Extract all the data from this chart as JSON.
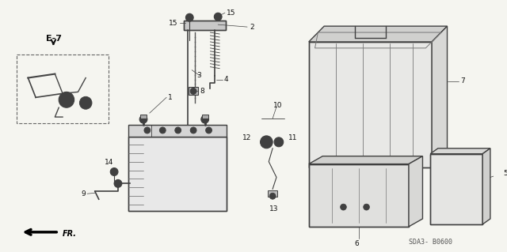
{
  "bg_color": "#f5f5f0",
  "diagram_code": "SDA3- B0600",
  "fig_width": 6.4,
  "fig_height": 3.19,
  "dpi": 100,
  "lc": "#404040",
  "lc2": "#555555",
  "gray": "#888888",
  "lgray": "#bbbbbb",
  "tc": "#111111"
}
